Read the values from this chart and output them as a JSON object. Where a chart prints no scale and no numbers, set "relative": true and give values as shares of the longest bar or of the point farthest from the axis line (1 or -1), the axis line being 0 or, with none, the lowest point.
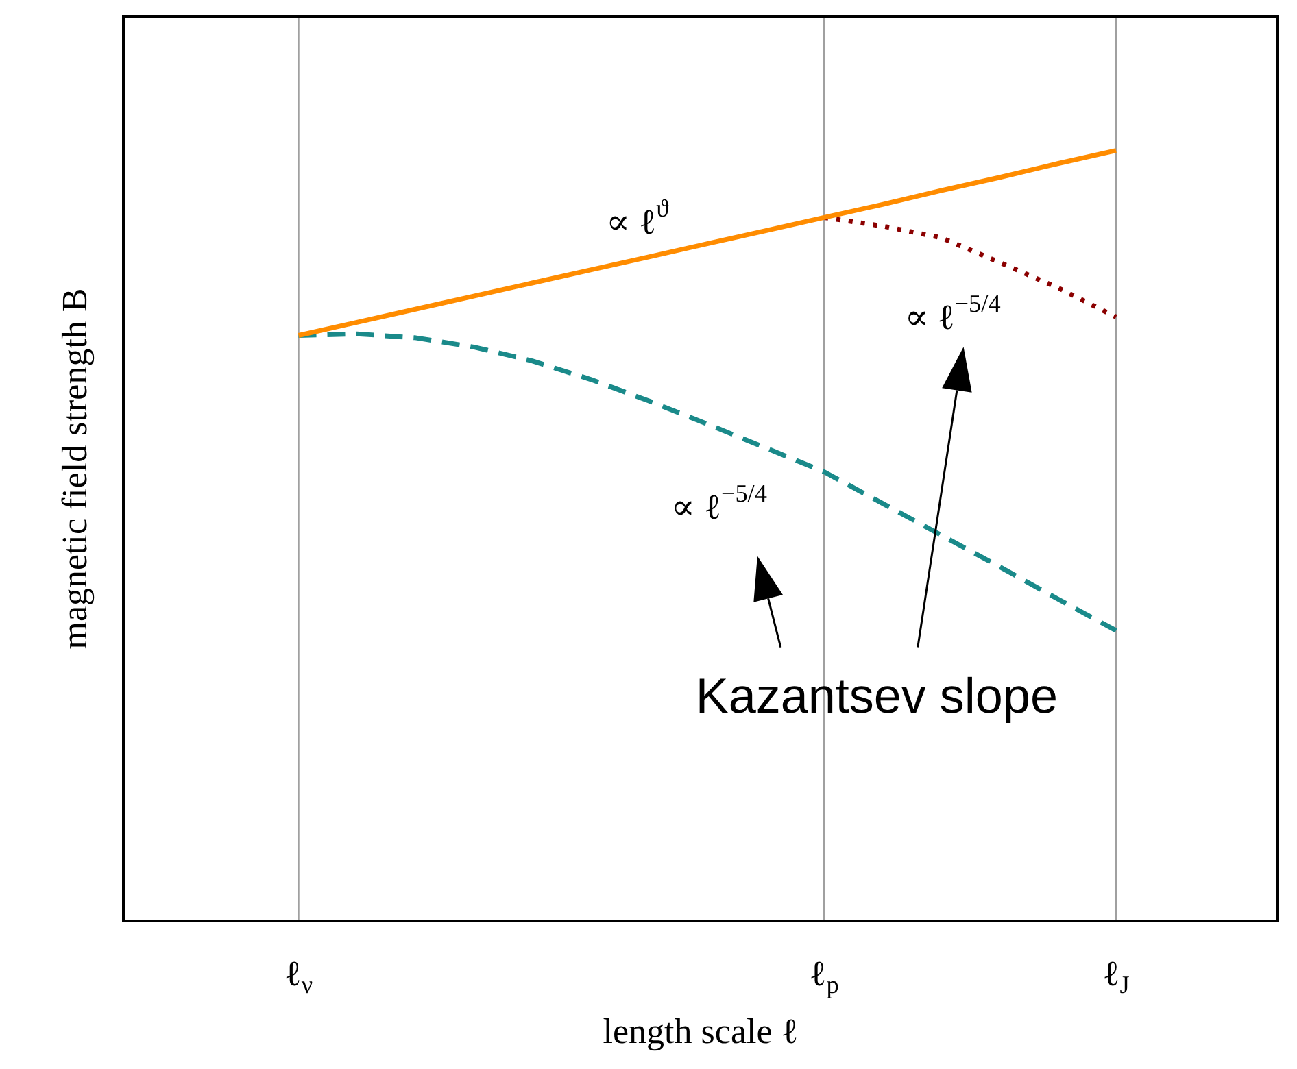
{
  "chart_data": {
    "type": "line",
    "relative": true,
    "xlabel": "length scale ℓ",
    "ylabel": "magnetic field strength B",
    "categories": [
      "ℓ$_{ν}$",
      null,
      null,
      null,
      null,
      null,
      null,
      null,
      null,
      "ℓ$_{p}$",
      null,
      null,
      null,
      null,
      "ℓ$_{J}$"
    ],
    "series": [
      {
        "color": "#ff8c00",
        "line_style": "solid",
        "values": [
          0.76,
          0.777,
          0.794,
          0.811,
          0.828,
          0.845,
          0.862,
          0.879,
          0.896,
          0.913,
          0.93,
          0.948,
          0.965,
          0.983,
          1
        ]
      },
      {
        "color": "#8b0000",
        "line_style": "dotted",
        "values": [
          null,
          null,
          null,
          null,
          null,
          null,
          null,
          null,
          null,
          0.913,
          0.902,
          0.887,
          0.855,
          0.822,
          0.784
        ]
      },
      {
        "color": "#1a8a8a",
        "line_style": "dashed",
        "values": [
          0.76,
          0.762,
          0.757,
          0.745,
          0.727,
          0.703,
          0.675,
          0.645,
          0.614,
          0.583,
          0.542,
          0.501,
          0.46,
          0.418,
          0.377
        ]
      }
    ],
    "ref_lines": [
      {
        "axis": "x",
        "value": "ℓ$_{ν}$",
        "color": "#a0a0a0"
      },
      {
        "axis": "x",
        "value": "ℓ$_{p}$",
        "color": "#a0a0a0"
      },
      {
        "axis": "x",
        "value": "ℓ$_{J}$",
        "color": "#a0a0a0"
      }
    ],
    "annotations": [
      "∝ ℓ$^{ϑ}$",
      "∝ ℓ$^{−5/4}$",
      "∝ ℓ$^{−5/4}$",
      "Kazantsev slope"
    ],
    "legend": false,
    "marker": "none"
  }
}
